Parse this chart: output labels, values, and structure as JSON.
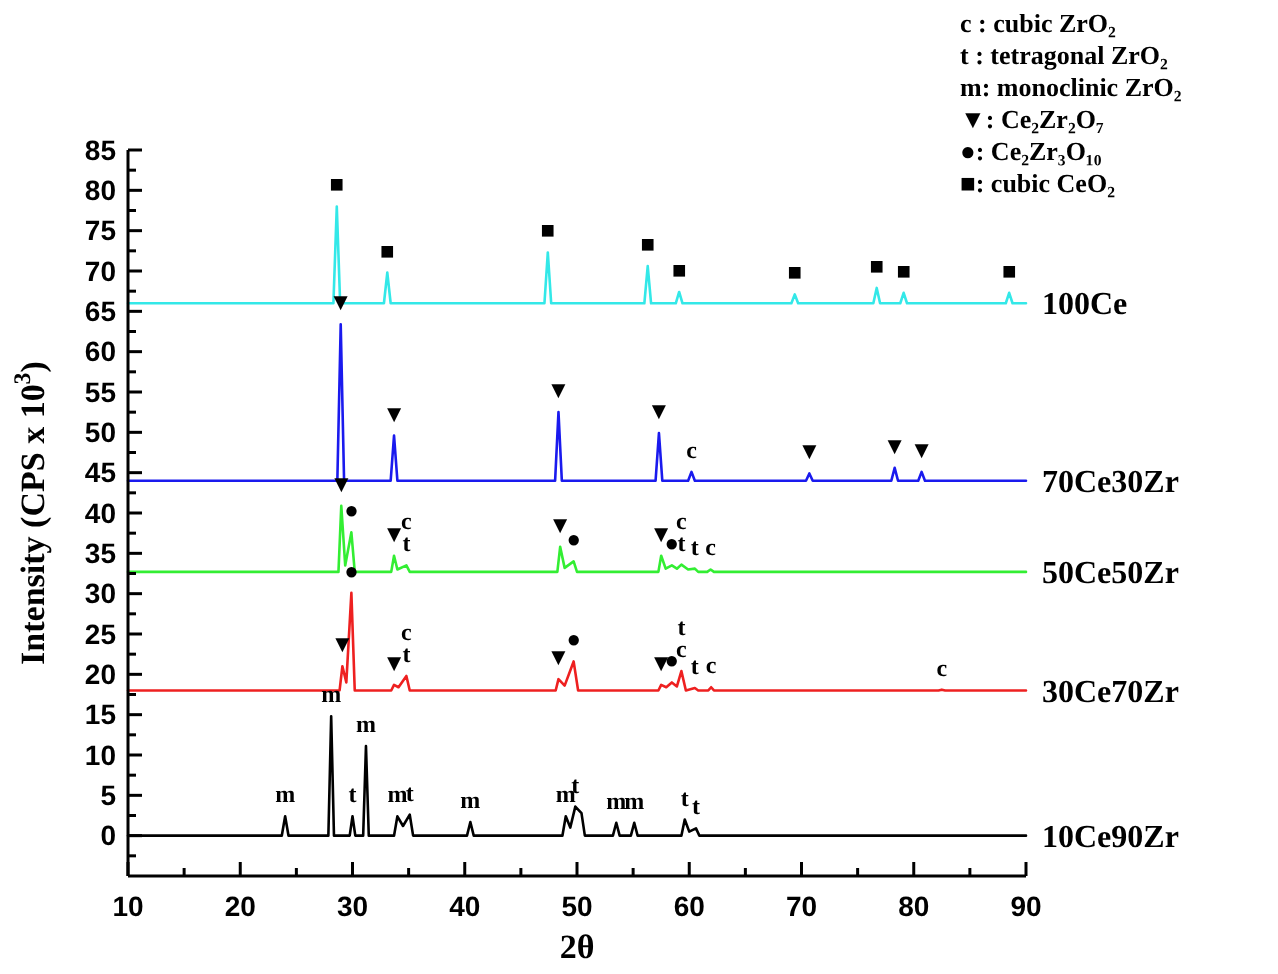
{
  "chart_data": {
    "type": "line",
    "xlabel": "2θ",
    "ylabel": "Intensity (CPS x 10$^{3}$)",
    "xlim": [
      10,
      90
    ],
    "ylim": [
      -5,
      85
    ],
    "xticks": [
      10,
      {
        "value": 15,
        "label": null
      },
      20,
      {
        "value": 25,
        "label": null
      },
      30,
      {
        "value": 35,
        "label": null
      },
      40,
      {
        "value": 45,
        "label": null
      },
      50,
      {
        "value": 55,
        "label": null
      },
      60,
      {
        "value": 65,
        "label": null
      },
      70,
      {
        "value": 75,
        "label": null
      },
      80,
      {
        "value": 85,
        "label": null
      },
      90
    ],
    "yticks": [
      {
        "value": -2.5,
        "label": null
      },
      0,
      {
        "value": 2.5,
        "label": null
      },
      5,
      {
        "value": 7.5,
        "label": null
      },
      10,
      {
        "value": 12.5,
        "label": null
      },
      15,
      {
        "value": 17.5,
        "label": null
      },
      20,
      {
        "value": 22.5,
        "label": null
      },
      25,
      {
        "value": 27.5,
        "label": null
      },
      30,
      {
        "value": 32.5,
        "label": null
      },
      35,
      {
        "value": 37.5,
        "label": null
      },
      40,
      {
        "value": 42.5,
        "label": null
      },
      45,
      {
        "value": 47.5,
        "label": null
      },
      50,
      {
        "value": 52.5,
        "label": null
      },
      55,
      {
        "value": 57.5,
        "label": null
      },
      60,
      {
        "value": 62.5,
        "label": null
      },
      65,
      {
        "value": 67.5,
        "label": null
      },
      70,
      {
        "value": 72.5,
        "label": null
      },
      75,
      {
        "value": 77.5,
        "label": null
      },
      80,
      {
        "value": 82.5,
        "label": null
      },
      85
    ],
    "grid": false,
    "marker": "none",
    "line_style": "solid",
    "series": [
      {
        "name": "100Ce",
        "color": "#33e8e8",
        "x": [
          10,
          28.3,
          28.6,
          28.9,
          32.8,
          33.1,
          33.4,
          47.1,
          47.4,
          47.7,
          56.0,
          56.3,
          56.6,
          58.8,
          59.1,
          59.4,
          69.1,
          69.4,
          69.7,
          76.4,
          76.7,
          77.0,
          78.8,
          79.1,
          79.4,
          88.2,
          88.5,
          88.8,
          90
        ],
        "values": [
          66,
          66,
          78,
          66,
          66,
          69.8,
          66,
          66,
          72.3,
          66,
          66,
          70.6,
          66,
          66,
          67.4,
          66,
          66,
          67.1,
          66,
          66,
          67.9,
          66,
          66,
          67.3,
          66,
          66,
          67.3,
          66,
          66
        ]
      },
      {
        "name": "70Ce30Zr",
        "color": "#1a1aee",
        "x": [
          10,
          28.65,
          28.95,
          29.25,
          33.4,
          33.7,
          34.0,
          48.05,
          48.35,
          48.65,
          57.0,
          57.3,
          57.6,
          59.9,
          60.2,
          60.5,
          70.4,
          70.7,
          71.0,
          78.0,
          78.3,
          78.6,
          80.4,
          80.7,
          81.0,
          90
        ],
        "values": [
          44,
          44,
          63.4,
          44,
          44,
          49.6,
          44,
          44,
          52.5,
          44,
          44,
          49.9,
          44,
          44,
          45.1,
          44,
          44,
          44.9,
          44,
          44,
          45.6,
          44,
          44,
          45.1,
          44,
          44
        ]
      },
      {
        "name": "50Ce50Zr",
        "color": "#33ee33",
        "x": [
          10,
          28.75,
          29.0,
          29.35,
          29.9,
          30.2,
          33.45,
          33.7,
          34.0,
          34.8,
          35.1,
          48.25,
          48.5,
          48.9,
          49.7,
          50.0,
          57.25,
          57.5,
          57.9,
          58.45,
          58.9,
          59.3,
          59.9,
          60.5,
          60.8,
          61.6,
          61.9,
          62.2,
          90
        ],
        "values": [
          32.7,
          32.7,
          40.9,
          33.5,
          37.6,
          32.7,
          32.7,
          34.7,
          33.0,
          33.5,
          32.7,
          32.7,
          35.8,
          33.2,
          34.0,
          32.7,
          32.7,
          34.7,
          33.1,
          33.5,
          33.1,
          33.6,
          33.0,
          33.1,
          32.7,
          32.7,
          33.0,
          32.7,
          32.7
        ]
      },
      {
        "name": "30Ce70Zr",
        "color": "#ee2020",
        "x": [
          10,
          28.85,
          29.1,
          29.45,
          29.9,
          30.2,
          33.45,
          33.7,
          34.1,
          34.8,
          35.1,
          48.1,
          48.35,
          48.9,
          49.7,
          50.1,
          57.25,
          57.5,
          57.95,
          58.45,
          58.9,
          59.3,
          59.7,
          60.5,
          60.8,
          61.7,
          61.95,
          62.2,
          82.2,
          82.5,
          82.8,
          90
        ],
        "values": [
          18,
          18,
          21.0,
          19.0,
          30.1,
          18,
          18,
          18.7,
          18.4,
          19.8,
          18,
          18,
          19.4,
          18.6,
          21.6,
          18,
          18,
          18.7,
          18.4,
          19.0,
          18.5,
          20.4,
          18,
          18.3,
          18,
          18,
          18.4,
          18,
          18,
          18.1,
          18,
          18
        ]
      },
      {
        "name": "10Ce90Zr",
        "color": "#000000",
        "x": [
          10,
          23.7,
          24.0,
          24.3,
          27.85,
          28.1,
          28.35,
          29.75,
          30.0,
          30.25,
          30.95,
          31.2,
          31.45,
          33.7,
          34.0,
          34.5,
          35.1,
          35.4,
          40.2,
          40.5,
          40.8,
          48.7,
          49.0,
          49.4,
          49.85,
          50.4,
          50.7,
          53.2,
          53.5,
          53.8,
          54.8,
          55.1,
          55.4,
          59.3,
          59.6,
          60.0,
          60.6,
          60.9,
          90
        ],
        "values": [
          0,
          0,
          2.4,
          0,
          0,
          14.8,
          0,
          0,
          2.4,
          0,
          0,
          11.1,
          0,
          0,
          2.4,
          1.2,
          2.6,
          0,
          0,
          1.7,
          0,
          0,
          2.4,
          1.0,
          3.6,
          2.8,
          0,
          0,
          1.6,
          0,
          0,
          1.6,
          0,
          0,
          2.0,
          0.5,
          0.9,
          0,
          0
        ]
      }
    ],
    "annotations": [
      "c : cubic ZrO₂",
      "t : tetragonal ZrO₂",
      "m: monoclinic ZrO₂",
      "▼: Ce₂Zr₂O₇",
      "●: Ce₂Zr₃O₁₀",
      "■: cubic CeO₂",
      {
        "text": "■",
        "x": 28.6,
        "y": 78
      },
      {
        "text": "■",
        "x": 33.1,
        "y": 69.8
      },
      {
        "text": "■",
        "x": 47.4,
        "y": 72.3
      },
      {
        "text": "■",
        "x": 56.3,
        "y": 70.6
      },
      {
        "text": "■",
        "x": 59.1,
        "y": 67.4
      },
      {
        "text": "■",
        "x": 69.4,
        "y": 67.1
      },
      {
        "text": "■",
        "x": 76.7,
        "y": 67.9
      },
      {
        "text": "■",
        "x": 79.1,
        "y": 67.3
      },
      {
        "text": "■",
        "x": 88.5,
        "y": 67.3
      },
      {
        "text": "▼",
        "x": 28.95,
        "y": 63.4
      },
      {
        "text": "▼",
        "x": 33.7,
        "y": 49.6
      },
      {
        "text": "▼",
        "x": 48.35,
        "y": 52.5
      },
      {
        "text": "▼",
        "x": 57.3,
        "y": 49.9
      },
      {
        "text": "c",
        "x": 60.2,
        "y": 45.1
      },
      {
        "text": "▼",
        "x": 70.7,
        "y": 44.9
      },
      {
        "text": "▼",
        "x": 78.3,
        "y": 45.6
      },
      {
        "text": "▼",
        "x": 80.7,
        "y": 45.1
      },
      {
        "text": "▼",
        "x": 29.0,
        "y": 40.9
      },
      {
        "text": "●",
        "x": 29.9,
        "y": 37.6
      },
      {
        "text": "▼",
        "x": 33.7,
        "y": 34.7
      },
      {
        "text": "t",
        "x": 34.8,
        "y": 33.5
      },
      {
        "text": "c",
        "x": 34.8,
        "y": 33.5
      },
      {
        "text": "▼",
        "x": 48.5,
        "y": 35.8
      },
      {
        "text": "●",
        "x": 49.7,
        "y": 34.0
      },
      {
        "text": "▼",
        "x": 57.5,
        "y": 34.7
      },
      {
        "text": "●",
        "x": 58.45,
        "y": 33.5
      },
      {
        "text": "t",
        "x": 59.3,
        "y": 33.6
      },
      {
        "text": "c",
        "x": 59.3,
        "y": 33.6
      },
      {
        "text": "t",
        "x": 60.5,
        "y": 33.1
      },
      {
        "text": "c",
        "x": 61.9,
        "y": 33.0
      },
      {
        "text": "▼",
        "x": 29.1,
        "y": 21.0
      },
      {
        "text": "●",
        "x": 29.9,
        "y": 30.1
      },
      {
        "text": "▼",
        "x": 33.7,
        "y": 18.7
      },
      {
        "text": "t",
        "x": 34.8,
        "y": 19.8
      },
      {
        "text": "c",
        "x": 34.8,
        "y": 19.8
      },
      {
        "text": "▼",
        "x": 48.35,
        "y": 19.4
      },
      {
        "text": "●",
        "x": 49.7,
        "y": 21.6
      },
      {
        "text": "▼",
        "x": 57.5,
        "y": 18.7
      },
      {
        "text": "●",
        "x": 58.45,
        "y": 19.0
      },
      {
        "text": "c",
        "x": 59.3,
        "y": 20.4
      },
      {
        "text": "t",
        "x": 59.3,
        "y": 20.4
      },
      {
        "text": "t",
        "x": 60.5,
        "y": 18.3
      },
      {
        "text": "c",
        "x": 61.95,
        "y": 18.4
      },
      {
        "text": "c",
        "x": 82.5,
        "y": 18.1
      },
      {
        "text": "m",
        "x": 24.0,
        "y": 2.4
      },
      {
        "text": "m",
        "x": 28.1,
        "y": 14.8
      },
      {
        "text": "m",
        "x": 31.2,
        "y": 11.1
      },
      {
        "text": "t",
        "x": 30.0,
        "y": 2.4
      },
      {
        "text": "m",
        "x": 34.0,
        "y": 2.4
      },
      {
        "text": "t",
        "x": 35.1,
        "y": 2.6
      },
      {
        "text": "m",
        "x": 40.5,
        "y": 1.7
      },
      {
        "text": "m",
        "x": 49.0,
        "y": 2.4
      },
      {
        "text": "t",
        "x": 49.85,
        "y": 3.6
      },
      {
        "text": "m",
        "x": 53.5,
        "y": 1.6
      },
      {
        "text": "m",
        "x": 55.1,
        "y": 1.6
      },
      {
        "text": "t",
        "x": 59.6,
        "y": 2.0
      },
      {
        "text": "t",
        "x": 60.6,
        "y": 0.9
      }
    ]
  }
}
